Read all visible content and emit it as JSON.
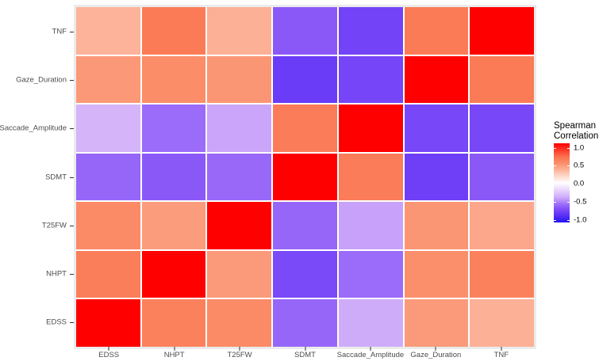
{
  "legend": {
    "title_line1": "Spearman",
    "title_line2": "Correlation",
    "tick_labels": [
      "1.0",
      "0.5",
      "0.0",
      "-0.5",
      "-1.0"
    ],
    "tick_values": [
      1.0,
      0.5,
      0.0,
      -0.5,
      -1.0
    ]
  },
  "colors": {
    "panel_background": "#EBEBEB",
    "tile_gap": "#FFFFFF",
    "axis_text": "#4D4D4D",
    "tick_mark": "#333333",
    "high": "#FF0000",
    "mid": "#FFFFFF",
    "low": "#2613F2"
  },
  "chart_data": {
    "type": "heatmap",
    "title": "",
    "legend_title": "Spearman Correlation",
    "legend_position": "right",
    "x_categories": [
      "EDSS",
      "NHPT",
      "T25FW",
      "SDMT",
      "Saccade_Amplitude",
      "Gaze_Duration",
      "TNF"
    ],
    "y_categories_top_to_bottom": [
      "TNF",
      "Gaze_Duration",
      "Saccade_Amplitude",
      "SDMT",
      "T25FW",
      "NHPT",
      "EDSS"
    ],
    "value_range": [
      -1.0,
      1.0
    ],
    "values_by_row": [
      {
        "row": "TNF",
        "values": [
          0.33,
          0.61,
          0.34,
          -0.62,
          -0.72,
          0.61,
          1.0
        ]
      },
      {
        "row": "Gaze_Duration",
        "values": [
          0.45,
          0.5,
          0.46,
          -0.76,
          -0.71,
          1.0,
          0.61
        ]
      },
      {
        "row": "Saccade_Amplitude",
        "values": [
          -0.33,
          -0.55,
          -0.38,
          0.6,
          1.0,
          -0.7,
          -0.7
        ]
      },
      {
        "row": "SDMT",
        "values": [
          -0.57,
          -0.62,
          -0.56,
          1.0,
          0.6,
          -0.74,
          -0.62
        ]
      },
      {
        "row": "T25FW",
        "values": [
          0.52,
          0.43,
          1.0,
          -0.57,
          -0.39,
          0.46,
          0.38
        ]
      },
      {
        "row": "NHPT",
        "values": [
          0.59,
          1.0,
          0.44,
          -0.69,
          -0.55,
          0.49,
          0.57
        ]
      },
      {
        "row": "EDSS",
        "values": [
          1.0,
          0.57,
          0.52,
          -0.57,
          -0.36,
          0.44,
          0.34
        ]
      }
    ],
    "gradient_stops": [
      {
        "value": 1.0,
        "color": "#FF0000"
      },
      {
        "value": 0.65,
        "color": "#FB7450"
      },
      {
        "value": 0.5,
        "color": "#FB8D69"
      },
      {
        "value": 0.35,
        "color": "#FCAE93"
      },
      {
        "value": 0.0,
        "color": "#FFFFFF"
      },
      {
        "value": -0.35,
        "color": "#D2AFFA"
      },
      {
        "value": -0.55,
        "color": "#9B6BF9"
      },
      {
        "value": -0.65,
        "color": "#8450F8"
      },
      {
        "value": -0.78,
        "color": "#6538F7"
      },
      {
        "value": -1.0,
        "color": "#2613F2"
      }
    ]
  }
}
